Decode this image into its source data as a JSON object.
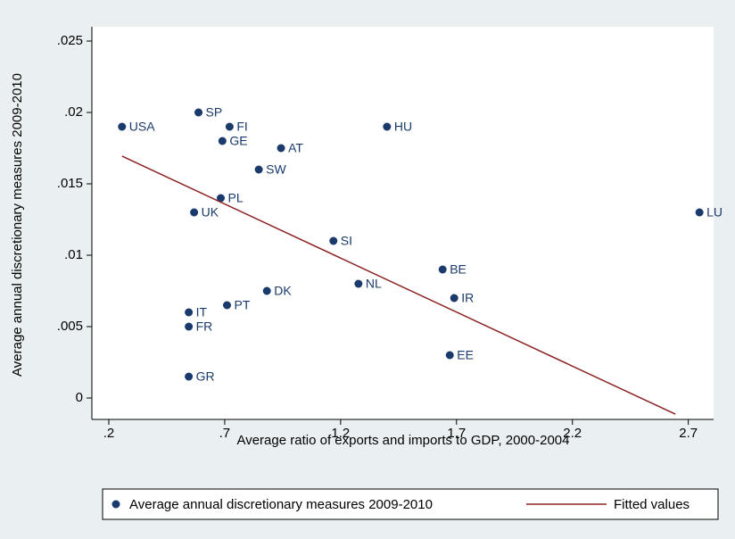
{
  "chart_data": {
    "type": "scatter",
    "xlabel": "Average ratio of exports and imports to GDP, 2000-2004",
    "ylabel": "Average annual discretionary measures 2009-2010",
    "xlim": [
      0.127,
      2.809
    ],
    "ylim": [
      -0.0015,
      0.026
    ],
    "xticks": [
      {
        "value": 0.2,
        "label": ".2"
      },
      {
        "value": 0.7,
        "label": ".7"
      },
      1.2,
      1.7,
      2.2,
      2.7
    ],
    "yticks": [
      0,
      {
        "value": 0.005,
        "label": ".005"
      },
      {
        "value": 0.01,
        "label": ".01"
      },
      {
        "value": 0.015,
        "label": ".015"
      },
      {
        "value": 0.02,
        "label": ".02"
      },
      {
        "value": 0.025,
        "label": ".025"
      }
    ],
    "series": [
      {
        "name": "Average annual discretionary measures 2009-2010",
        "color": "#1a3a6b",
        "labels": [
          "USA",
          "SP",
          "FI",
          "GE",
          "AT",
          "HU",
          "SW",
          "PL",
          "UK",
          "LU",
          "SI",
          "BE",
          "NL",
          "IR",
          "DK",
          "PT",
          "IT",
          "FR",
          "EE",
          "GR"
        ],
        "x": [
          0.257,
          0.587,
          0.721,
          0.69,
          0.943,
          1.4,
          0.847,
          0.683,
          0.568,
          2.748,
          1.169,
          1.64,
          1.277,
          1.69,
          0.882,
          0.71,
          0.545,
          0.545,
          1.671,
          0.545
        ],
        "values": [
          0.019,
          0.02,
          0.019,
          0.018,
          0.0175,
          0.019,
          0.016,
          0.014,
          0.013,
          0.013,
          0.011,
          0.009,
          0.008,
          0.007,
          0.0075,
          0.0065,
          0.006,
          0.005,
          0.003,
          0.0015
        ]
      },
      {
        "name": "Fitted values",
        "color": "#8b2323",
        "type": "line",
        "x": [
          0.257,
          2.644
        ],
        "values": [
          0.01694,
          -0.00113
        ]
      }
    ]
  }
}
